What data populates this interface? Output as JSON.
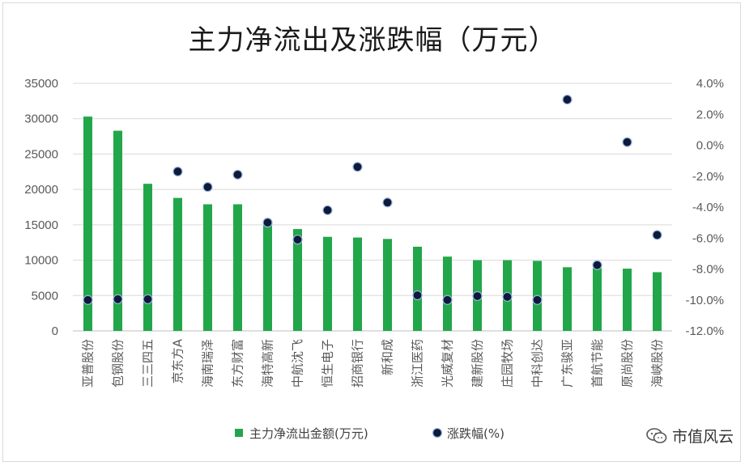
{
  "chart_data": {
    "type": "bar",
    "title": "主力净流出及涨跌幅（万元）",
    "categories": [
      "亚普股份",
      "包钢股份",
      "三三四五",
      "京东方A",
      "海南瑞泽",
      "东方财富",
      "海特高新",
      "中航沈飞",
      "恒生电子",
      "招商银行",
      "新和成",
      "浙江医药",
      "光威复材",
      "建新股份",
      "庄园牧场",
      "中科创达",
      "广东骏亚",
      "首航节能",
      "原尚股份",
      "海峡股份"
    ],
    "series": [
      {
        "name": "主力净流出金额(万元)",
        "type": "bar",
        "axis": "left",
        "color": "#22a64a",
        "values": [
          30300,
          28300,
          20800,
          18800,
          17900,
          17900,
          15300,
          14400,
          13300,
          13200,
          13000,
          11900,
          10500,
          10000,
          10000,
          9900,
          9000,
          8900,
          8800,
          8300
        ]
      },
      {
        "name": "涨跌幅(%)",
        "type": "scatter",
        "axis": "right",
        "color": "#0d1a3a",
        "values": [
          -10.0,
          -9.95,
          -9.95,
          -1.7,
          -2.7,
          -1.9,
          -5.0,
          -6.1,
          -4.2,
          -1.4,
          -3.7,
          -9.7,
          -10.0,
          -9.75,
          -9.8,
          -10.0,
          2.95,
          -7.75,
          0.2,
          -5.8
        ]
      }
    ],
    "y_left": {
      "min": 0,
      "max": 35000,
      "step": 5000,
      "ticks": [
        "0",
        "5000",
        "10000",
        "15000",
        "20000",
        "25000",
        "30000",
        "35000"
      ]
    },
    "y_right": {
      "min": -12,
      "max": 4,
      "step": 2,
      "ticks": [
        "-12.0%",
        "-10.0%",
        "-8.0%",
        "-6.0%",
        "-4.0%",
        "-2.0%",
        "0.0%",
        "2.0%",
        "4.0%"
      ]
    },
    "grid": true,
    "legend_position": "bottom"
  },
  "watermark": {
    "icon": "chat-bubbles-icon",
    "text": "市值风云"
  }
}
